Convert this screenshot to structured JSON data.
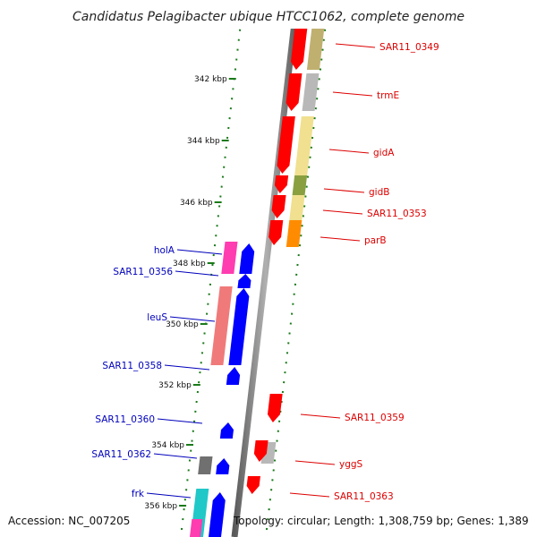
{
  "title": "Candidatus Pelagibacter ubique HTCC1062, complete genome",
  "footer": {
    "accession": "Accession: NC_007205",
    "summary": "Topology: circular; Length: 1,308,759 bp; Genes: 1,389"
  },
  "colors": {
    "forward_strand": "#ff0000",
    "reverse_strand": "#0000ff",
    "forward_label": "#dd0000",
    "reverse_label": "#0000bb",
    "backbone": "#808080",
    "ticks": "#1a7a1a"
  },
  "ticks": [
    "342 kbp",
    "344 kbp",
    "346 kbp",
    "348 kbp",
    "350 kbp",
    "352 kbp",
    "354 kbp",
    "356 kbp"
  ],
  "forward_genes": [
    {
      "label": "SAR11_0349",
      "category_color": "#c0b070"
    },
    {
      "label": "trmE",
      "category_color": "#b8b8b8"
    },
    {
      "label": "gidA",
      "category_color": "#f0e090"
    },
    {
      "label": "gidB",
      "category_color": "#8aa040"
    },
    {
      "label": "SAR11_0353",
      "category_color": "#f0e090"
    },
    {
      "label": "parB",
      "category_color": "#ff8c00"
    },
    {
      "label": "SAR11_0359",
      "category_color": ""
    },
    {
      "label": "yggS",
      "category_color": "#b8b8b8"
    },
    {
      "label": "SAR11_0363",
      "category_color": ""
    }
  ],
  "reverse_genes": [
    {
      "label": "holA",
      "category_color": "#ff3cb0"
    },
    {
      "label": "SAR11_0356",
      "category_color": ""
    },
    {
      "label": "leuS",
      "category_color": "#f07a7a"
    },
    {
      "label": "SAR11_0358",
      "category_color": ""
    },
    {
      "label": "SAR11_0360",
      "category_color": ""
    },
    {
      "label": "SAR11_0362",
      "category_color": "#707070"
    },
    {
      "label": "frk",
      "category_color": "#20c8c8"
    }
  ]
}
